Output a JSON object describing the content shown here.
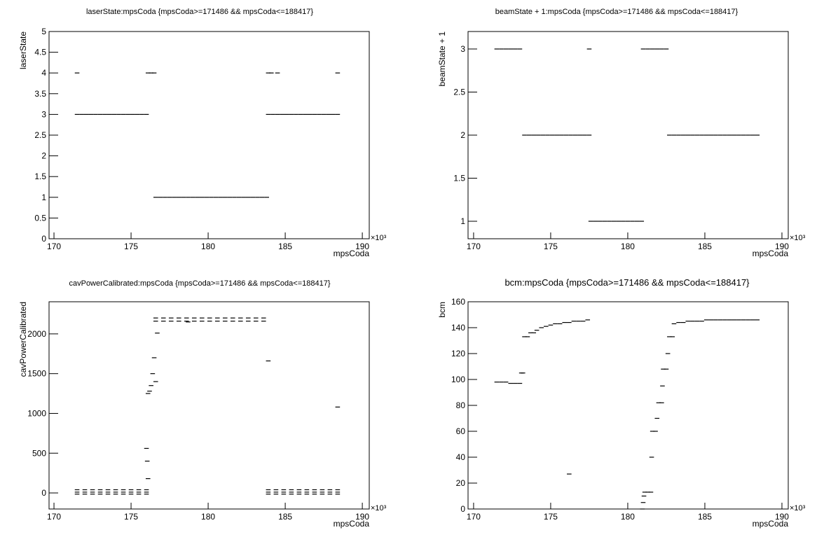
{
  "chart_data": [
    {
      "type": "scatter",
      "title": "laserState:mpsCoda {mpsCoda>=171486 && mpsCoda<=188417}",
      "x_label": "mpsCoda",
      "y_label": "laserState",
      "x_exponent_label": "×10³",
      "color": "#000000",
      "xlim": [
        169.68,
        190.45
      ],
      "xticks": [
        170,
        175,
        180,
        185,
        190
      ],
      "ylim": [
        0,
        5
      ],
      "yticks": [
        0,
        0.5,
        1,
        1.5,
        2,
        2.5,
        3,
        3.5,
        4,
        4.5,
        5
      ],
      "x": [
        171.5,
        171.8,
        172.1,
        172.4,
        172.7,
        173.0,
        173.3,
        173.6,
        173.9,
        174.2,
        174.5,
        174.8,
        175.1,
        175.4,
        175.7,
        176.0,
        171.5,
        176.1,
        176.3,
        176.5,
        176.6,
        176.9,
        177.2,
        177.5,
        177.8,
        178.1,
        178.4,
        178.7,
        179.0,
        179.3,
        179.6,
        179.9,
        180.2,
        180.5,
        180.8,
        181.1,
        181.4,
        181.7,
        182.0,
        182.3,
        182.6,
        182.9,
        183.2,
        183.5,
        183.8,
        183.9,
        184.2,
        184.5,
        184.8,
        185.1,
        185.4,
        185.7,
        186.0,
        186.3,
        186.6,
        186.9,
        187.2,
        187.5,
        187.8,
        188.1,
        188.4,
        183.9,
        184.1,
        184.5,
        188.4
      ],
      "values": [
        3,
        3,
        3,
        3,
        3,
        3,
        3,
        3,
        3,
        3,
        3,
        3,
        3,
        3,
        3,
        3,
        4,
        4,
        4,
        4,
        1,
        1,
        1,
        1,
        1,
        1,
        1,
        1,
        1,
        1,
        1,
        1,
        1,
        1,
        1,
        1,
        1,
        1,
        1,
        1,
        1,
        1,
        1,
        1,
        1,
        3,
        3,
        3,
        3,
        3,
        3,
        3,
        3,
        3,
        3,
        3,
        3,
        3,
        3,
        3,
        3,
        4,
        4,
        4,
        4
      ]
    },
    {
      "type": "scatter",
      "title": "beamState + 1:mpsCoda {mpsCoda>=171486 && mpsCoda<=188417}",
      "x_label": "mpsCoda",
      "y_label": "beamState + 1",
      "x_exponent_label": "×10³",
      "color": "#000000",
      "xlim": [
        169.64,
        190.41
      ],
      "xticks": [
        170,
        175,
        180,
        185,
        190
      ],
      "ylim": [
        0.797,
        3.203
      ],
      "yticks": [
        1,
        1.5,
        2,
        2.5,
        3
      ],
      "x": [
        171.5,
        171.8,
        172.1,
        172.4,
        172.7,
        173.0,
        173.3,
        173.6,
        173.9,
        174.2,
        174.5,
        174.8,
        175.1,
        175.4,
        175.7,
        176.0,
        176.3,
        176.6,
        176.9,
        177.2,
        177.5,
        177.5,
        177.6,
        177.9,
        178.2,
        178.5,
        178.8,
        179.1,
        179.4,
        179.7,
        180.0,
        180.3,
        180.6,
        180.9,
        181.0,
        181.3,
        181.6,
        181.9,
        182.2,
        182.5,
        182.7,
        183.0,
        183.3,
        183.6,
        183.9,
        184.2,
        184.5,
        184.8,
        185.1,
        185.4,
        185.7,
        186.0,
        186.3,
        186.6,
        186.9,
        187.2,
        187.5,
        187.8,
        188.1,
        188.4
      ],
      "values": [
        3,
        3,
        3,
        3,
        3,
        3,
        2,
        2,
        2,
        2,
        2,
        2,
        2,
        2,
        2,
        2,
        2,
        2,
        2,
        2,
        2,
        3,
        1,
        1,
        1,
        1,
        1,
        1,
        1,
        1,
        1,
        1,
        1,
        1,
        3,
        3,
        3,
        3,
        3,
        3,
        2,
        2,
        2,
        2,
        2,
        2,
        2,
        2,
        2,
        2,
        2,
        2,
        2,
        2,
        2,
        2,
        2,
        2,
        2,
        2
      ]
    },
    {
      "type": "scatter",
      "title": "cavPowerCalibrated:mpsCoda {mpsCoda>=171486 && mpsCoda<=188417}",
      "x_label": "mpsCoda",
      "y_label": "cavPowerCalibrated",
      "x_exponent_label": "×10³",
      "color": "#000000",
      "xlim": [
        169.68,
        190.45
      ],
      "xticks": [
        170,
        175,
        180,
        185,
        190
      ],
      "ylim": [
        -202,
        2404
      ],
      "yticks": [
        0,
        500,
        1000,
        1500,
        2000
      ],
      "x": [
        171.5,
        172.0,
        172.5,
        173.0,
        173.5,
        174.0,
        174.5,
        175.0,
        175.5,
        176.0,
        171.5,
        172.0,
        172.5,
        173.0,
        173.5,
        174.0,
        174.5,
        175.0,
        175.5,
        176.0,
        171.5,
        172.0,
        172.5,
        173.0,
        173.5,
        174.0,
        174.5,
        175.0,
        175.5,
        176.0,
        176.0,
        176.05,
        176.1,
        176.1,
        176.2,
        176.3,
        176.4,
        176.5,
        176.6,
        176.7,
        176.6,
        177.1,
        177.6,
        178.1,
        178.6,
        179.1,
        179.6,
        180.1,
        180.6,
        181.1,
        181.6,
        182.1,
        182.6,
        183.1,
        183.6,
        176.6,
        177.1,
        177.6,
        178.1,
        178.6,
        179.1,
        179.6,
        180.1,
        180.6,
        181.1,
        181.6,
        182.1,
        182.6,
        183.1,
        183.6,
        178.7,
        183.9,
        183.9,
        184.4,
        184.9,
        185.4,
        185.9,
        186.4,
        186.9,
        187.4,
        187.9,
        188.4,
        183.9,
        184.4,
        184.9,
        185.4,
        185.9,
        186.4,
        186.9,
        187.4,
        187.9,
        188.4,
        183.9,
        184.4,
        184.9,
        185.4,
        185.9,
        186.4,
        186.9,
        187.4,
        187.9,
        188.4,
        188.4
      ],
      "values": [
        40,
        40,
        40,
        40,
        40,
        40,
        40,
        40,
        40,
        40,
        10,
        10,
        10,
        10,
        10,
        10,
        10,
        10,
        10,
        10,
        -15,
        -15,
        -15,
        -15,
        -15,
        -15,
        -15,
        -15,
        -15,
        -15,
        560,
        400,
        180,
        1250,
        1280,
        1350,
        1500,
        1700,
        1400,
        2010,
        2200,
        2200,
        2200,
        2200,
        2200,
        2200,
        2200,
        2200,
        2200,
        2200,
        2200,
        2200,
        2200,
        2200,
        2200,
        2160,
        2160,
        2160,
        2160,
        2160,
        2160,
        2160,
        2160,
        2160,
        2160,
        2160,
        2160,
        2160,
        2160,
        2160,
        2150,
        1660,
        40,
        40,
        40,
        40,
        40,
        40,
        40,
        40,
        40,
        40,
        10,
        10,
        10,
        10,
        10,
        10,
        10,
        10,
        10,
        10,
        -15,
        -15,
        -15,
        -15,
        -15,
        -15,
        -15,
        -15,
        -15,
        -15,
        1080
      ]
    },
    {
      "type": "scatter",
      "title": "bcm:mpsCoda {mpsCoda>=171486 && mpsCoda<=188417}",
      "x_label": "mpsCoda",
      "y_label": "bcm",
      "x_exponent_label": "×10³",
      "color": "#000000",
      "xlim": [
        169.64,
        190.41
      ],
      "xticks": [
        170,
        175,
        180,
        185,
        190
      ],
      "ylim": [
        0,
        160
      ],
      "yticks": [
        0,
        20,
        40,
        60,
        80,
        100,
        120,
        140,
        160
      ],
      "x": [
        171.5,
        171.8,
        172.1,
        172.4,
        172.7,
        173.0,
        173.1,
        173.2,
        173.3,
        173.5,
        173.7,
        173.9,
        174.1,
        174.4,
        174.7,
        175.0,
        175.3,
        175.6,
        175.9,
        176.2,
        176.5,
        176.8,
        177.1,
        177.4,
        176.2,
        180.95,
        181.0,
        181.05,
        181.1,
        181.3,
        181.5,
        181.55,
        181.6,
        181.8,
        181.9,
        182.0,
        182.2,
        182.25,
        182.3,
        182.5,
        182.6,
        182.7,
        182.9,
        183.0,
        183.3,
        183.6,
        183.9,
        184.2,
        184.5,
        184.8,
        185.1,
        185.4,
        185.7,
        186.0,
        186.3,
        186.6,
        186.9,
        187.2,
        187.5,
        187.8,
        188.1,
        188.4
      ],
      "values": [
        98,
        98,
        98,
        97,
        97,
        97,
        105,
        105,
        133,
        133,
        136,
        136,
        138,
        140,
        141,
        142,
        143,
        143,
        144,
        144,
        145,
        145,
        145,
        146,
        27,
        0,
        5,
        10,
        13,
        13,
        13,
        40,
        60,
        60,
        70,
        82,
        82,
        95,
        108,
        108,
        120,
        133,
        133,
        143,
        144,
        144,
        145,
        145,
        145,
        145,
        146,
        146,
        146,
        146,
        146,
        146,
        146,
        146,
        146,
        146,
        146,
        146
      ]
    }
  ]
}
